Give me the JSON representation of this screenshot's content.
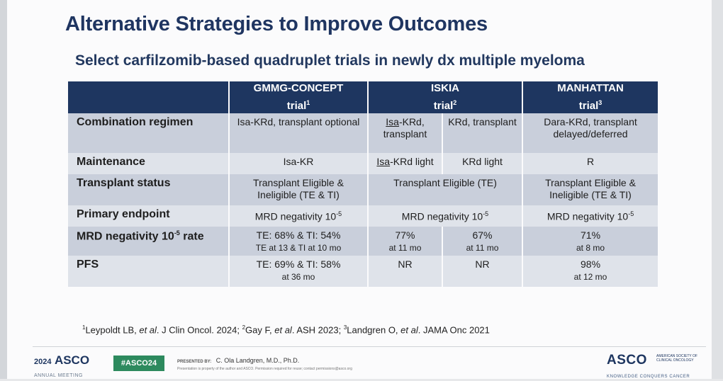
{
  "title": "Alternative Strategies to Improve Outcomes",
  "subtitle": "Select carfilzomib-based quadruplet trials in newly dx multiple myeloma",
  "table": {
    "headers": [
      {
        "name": "GMMG-CONCEPT",
        "trial": "trial",
        "ref": "1"
      },
      {
        "name": "ISKIA",
        "trial": "trial",
        "ref": "2"
      },
      {
        "name": "MANHATTAN",
        "trial": "trial",
        "ref": "3"
      }
    ],
    "rows": {
      "combination": {
        "label": "Combination regimen",
        "gmmg": "Isa-KRd, transplant optional",
        "iskia_a_pre": "Isa",
        "iskia_a_post": "-KRd, transplant",
        "iskia_b": "KRd, transplant",
        "manhattan": "Dara-KRd, transplant delayed/deferred"
      },
      "maintenance": {
        "label": "Maintenance",
        "gmmg": "Isa-KR",
        "iskia_a_pre": "Isa",
        "iskia_a_post": "-KRd light",
        "iskia_b": "KRd light",
        "manhattan": "R"
      },
      "transplant": {
        "label": "Transplant status",
        "gmmg": "Transplant Eligible & Ineligible (TE & TI)",
        "iskia": "Transplant Eligible (TE)",
        "manhattan": "Transplant Eligible & Ineligible (TE & TI)"
      },
      "endpoint": {
        "label": "Primary endpoint",
        "text": "MRD negativity 10",
        "exp": "-5"
      },
      "mrd": {
        "label": "MRD negativity 10",
        "label_exp": "-5",
        "label_post": " rate",
        "gmmg": "TE: 68% & TI: 54%",
        "gmmg_sub": "TE at 13 & TI at 10 mo",
        "iskia_a": "77%",
        "iskia_a_sub": "at 11 mo",
        "iskia_b": "67%",
        "iskia_b_sub": "at 11 mo",
        "manhattan": "71%",
        "manhattan_sub": "at 8 mo"
      },
      "pfs": {
        "label": "PFS",
        "gmmg": "TE: 69% & TI: 58%",
        "gmmg_sub": "at 36 mo",
        "iskia_a": "NR",
        "iskia_b": "NR",
        "manhattan": "98%",
        "manhattan_sub": "at 12 mo"
      }
    }
  },
  "footnote": {
    "r1": "1",
    "p1": "Leypoldt LB, ",
    "etal": "et al",
    "p1b": ". J Clin Oncol. 2024; ",
    "r2": "2",
    "p2": "Gay F, ",
    "p2b": ". ASH 2023; ",
    "r3": "3",
    "p3": "Landgren O, ",
    "p3b": ". JAMA Onc 2021"
  },
  "footer": {
    "year": "2024",
    "brand": "ASCO",
    "meeting": "ANNUAL MEETING",
    "hashtag": "#ASCO24",
    "presented_label": "PRESENTED BY:",
    "presenter": "C. Ola Landgren, M.D., Ph.D.",
    "note": "Presentation is property of the author and ASCO. Permission required for reuse; contact permissions@asco.org",
    "right_brand": "ASCO",
    "right_side": "AMERICAN SOCIETY OF CLINICAL ONCOLOGY",
    "right_tagline": "KNOWLEDGE CONQUERS CANCER"
  },
  "colors": {
    "header_bg": "#1e3660",
    "row_dark": "#c9cfdb",
    "row_light": "#dfe3ea",
    "title": "#1f3561",
    "hashtag_bg": "#2d8a5e"
  }
}
